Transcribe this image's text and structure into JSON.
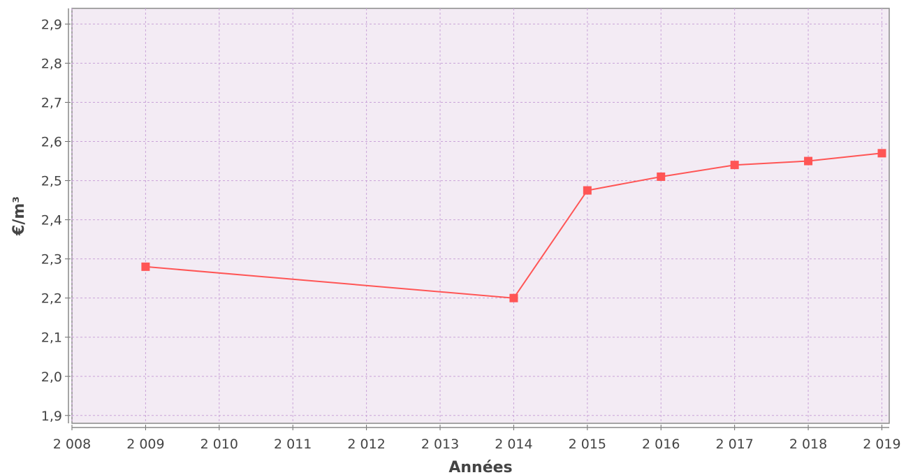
{
  "chart_data": {
    "type": "line",
    "title": "",
    "xlabel": "Années",
    "ylabel": "€/m³",
    "xlim": [
      2008,
      2019.1
    ],
    "ylim": [
      1.88,
      2.94
    ],
    "x_ticks": [
      2008,
      2009,
      2010,
      2011,
      2012,
      2013,
      2014,
      2015,
      2016,
      2017,
      2018,
      2019
    ],
    "x_tick_labels": [
      "2 008",
      "2 009",
      "2 010",
      "2 011",
      "2 012",
      "2 013",
      "2 014",
      "2 015",
      "2 016",
      "2 017",
      "2 018",
      "2 019"
    ],
    "y_ticks": [
      1.9,
      2.0,
      2.1,
      2.2,
      2.3,
      2.4,
      2.5,
      2.6,
      2.7,
      2.8,
      2.9
    ],
    "y_tick_labels": [
      "1,9",
      "2,0",
      "2,1",
      "2,2",
      "2,3",
      "2,4",
      "2,5",
      "2,6",
      "2,7",
      "2,8",
      "2,9"
    ],
    "grid": true,
    "legend": "none",
    "series": [
      {
        "x": [
          2009,
          2014,
          2015,
          2016,
          2017,
          2018,
          2019
        ],
        "values": [
          2.28,
          2.2,
          2.475,
          2.51,
          2.54,
          2.55,
          2.57
        ],
        "color": "#ff5555",
        "marker": "square"
      }
    ],
    "colors": {
      "plot_background": "#f3ebf4",
      "grid": "#c9a3d8",
      "axis": "#8a8a8a"
    }
  }
}
